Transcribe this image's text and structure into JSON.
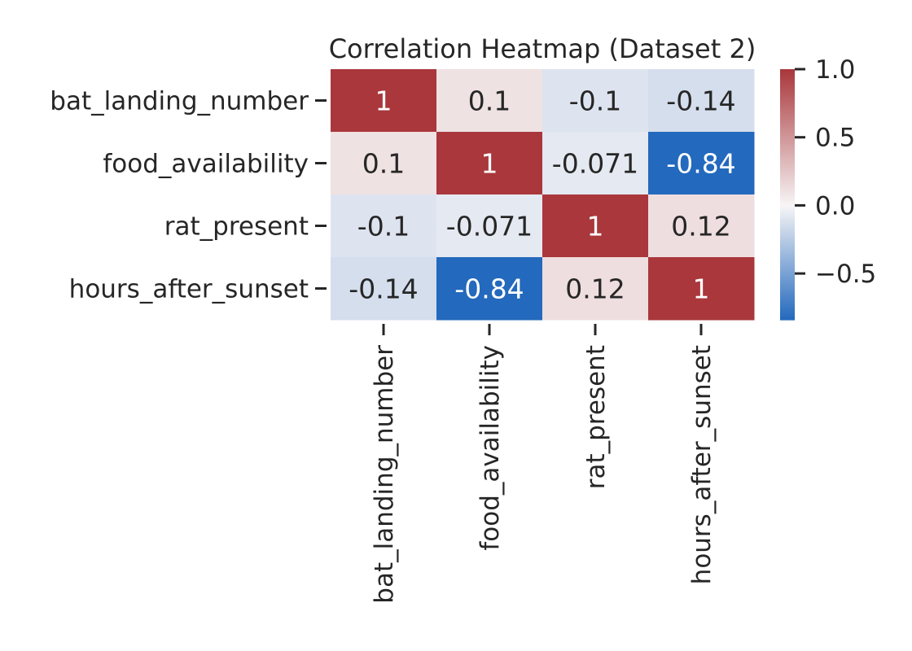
{
  "chart_data": {
    "type": "heatmap",
    "title": "Correlation Heatmap (Dataset 2)",
    "row_labels": [
      "bat_landing_number",
      "food_availability",
      "rat_present",
      "hours_after_sunset"
    ],
    "col_labels": [
      "bat_landing_number",
      "food_availability",
      "rat_present",
      "hours_after_sunset"
    ],
    "values": [
      [
        1,
        0.1,
        -0.1,
        -0.14
      ],
      [
        0.1,
        1,
        -0.071,
        -0.84
      ],
      [
        -0.1,
        -0.071,
        1,
        0.12
      ],
      [
        -0.14,
        -0.84,
        0.12,
        1
      ]
    ],
    "annotations": [
      [
        "1",
        "0.1",
        "-0.1",
        "-0.14"
      ],
      [
        "0.1",
        "1",
        "-0.071",
        "-0.84"
      ],
      [
        "-0.1",
        "-0.071",
        "1",
        "0.12"
      ],
      [
        "-0.14",
        "-0.84",
        "0.12",
        "1"
      ]
    ],
    "colormap": "vlag (blue–white–red)",
    "colors": {
      "low": "#2369bd",
      "mid": "#f7f5f6",
      "high": "#a9373b"
    },
    "vmin": -0.84,
    "vmax": 1.0,
    "colorbar": {
      "ticks": [
        1.0,
        0.5,
        0.0,
        -0.5
      ],
      "tick_labels": [
        "1.0",
        "0.5",
        "0.0",
        "−0.5"
      ]
    }
  }
}
